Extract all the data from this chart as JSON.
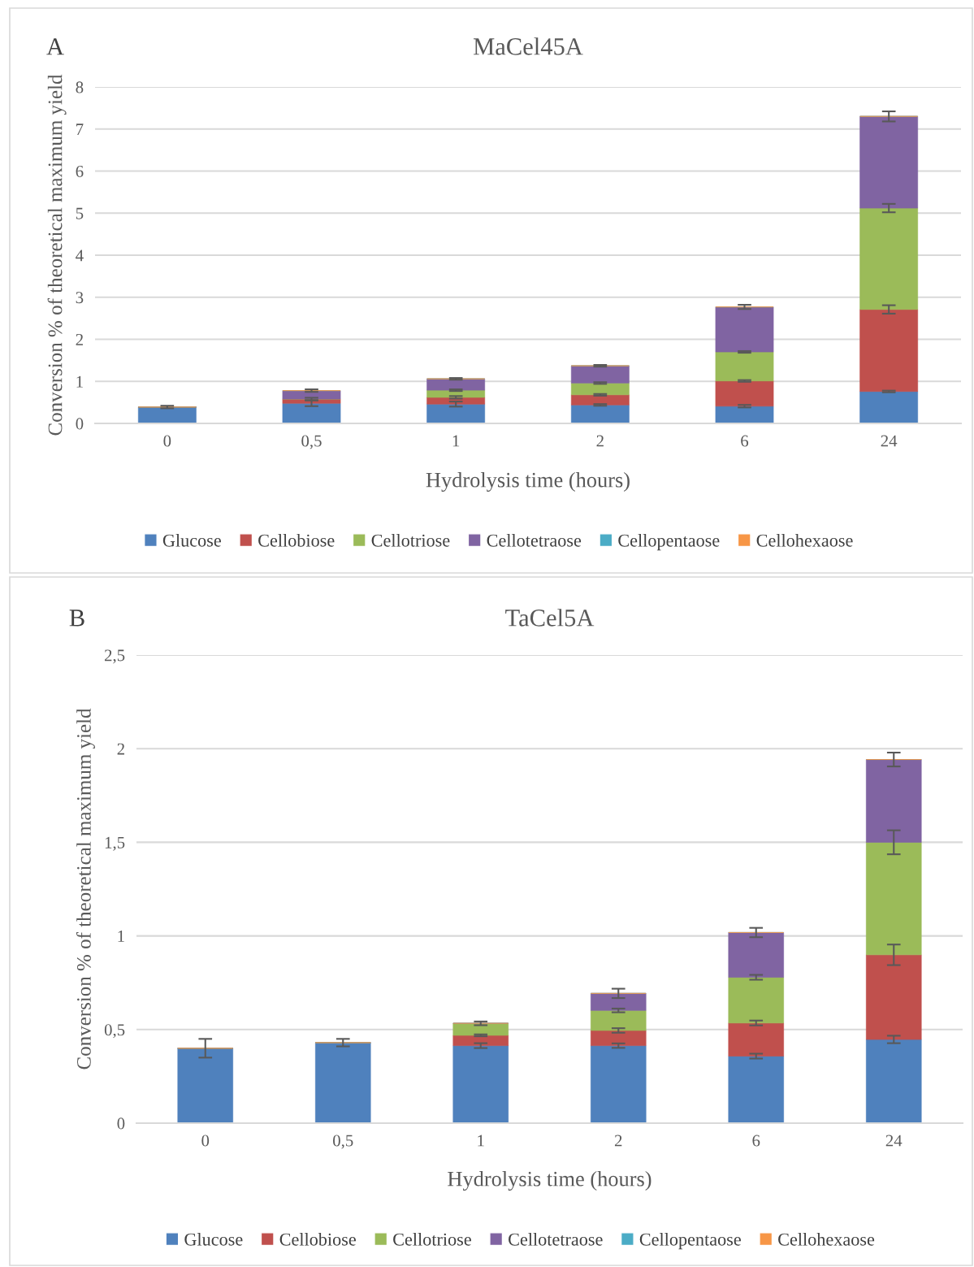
{
  "chart_data": [
    {
      "type": "bar",
      "title": "MaCel45A",
      "annotations": [
        "A"
      ],
      "xlabel": "Hydrolysis time (hours)",
      "ylabel": "Conversion % of theoretical maximum yield",
      "categories": [
        "0",
        "0,5",
        "1",
        "2",
        "6",
        "24"
      ],
      "stacked": true,
      "grid": "y",
      "legend": "bottom",
      "ylim": [
        0,
        8
      ],
      "yticks": [
        0,
        1,
        2,
        3,
        4,
        5,
        6,
        7,
        8
      ],
      "series": [
        {
          "name": "Glucose",
          "color": "#4f81bd",
          "values": [
            0.39,
            0.48,
            0.46,
            0.44,
            0.41,
            0.76
          ],
          "errors": [
            0.03,
            0.07,
            0.06,
            0.02,
            0.03,
            0.02
          ]
        },
        {
          "name": "Cellobiose",
          "color": "#c0504d",
          "values": [
            0,
            0.1,
            0.16,
            0.24,
            0.6,
            1.95
          ],
          "errors": [
            null,
            0.03,
            0.03,
            0.02,
            0.02,
            0.1
          ]
        },
        {
          "name": "Cellotriose",
          "color": "#9bbb59",
          "values": [
            0,
            0,
            0.17,
            0.28,
            0.69,
            2.41
          ],
          "errors": [
            null,
            null,
            0.02,
            0.02,
            0.02,
            0.1
          ]
        },
        {
          "name": "Cellotetraose",
          "color": "#8064a2",
          "values": [
            0,
            0.2,
            0.27,
            0.41,
            1.07,
            2.18
          ],
          "errors": [
            null,
            0.03,
            0.02,
            0.02,
            0.05,
            0.12
          ]
        },
        {
          "name": "Cellopentaose",
          "color": "#4bacc6",
          "values": [
            0,
            0,
            0,
            0,
            0,
            0
          ]
        },
        {
          "name": "Cellohexaose",
          "color": "#f79646",
          "values": [
            0,
            0,
            0,
            0,
            0,
            0
          ]
        }
      ]
    },
    {
      "type": "bar",
      "title": "TaCel5A",
      "annotations": [
        "B"
      ],
      "xlabel": "Hydrolysis time (hours)",
      "ylabel": "Conversion % of theoretical maximum yield",
      "categories": [
        "0",
        "0,5",
        "1",
        "2",
        "6",
        "24"
      ],
      "stacked": true,
      "grid": "y",
      "legend": "bottom",
      "ylim": [
        0,
        2.5
      ],
      "yticks": [
        0,
        {
          "value": 0.5,
          "label": "0,5"
        },
        1,
        {
          "value": 1.5,
          "label": "1,5"
        },
        2,
        {
          "value": 2.5,
          "label": "2,5"
        }
      ],
      "series": [
        {
          "name": "Glucose",
          "color": "#4f81bd",
          "values": [
            0.4,
            0.43,
            0.414,
            0.414,
            0.358,
            0.447
          ],
          "errors": [
            0.05,
            0.02,
            0.013,
            0.012,
            0.013,
            0.02
          ]
        },
        {
          "name": "Cellobiose",
          "color": "#c0504d",
          "values": [
            0,
            0,
            0.055,
            0.081,
            0.177,
            0.452
          ],
          "errors": [
            null,
            null,
            0.005,
            0.012,
            0.013,
            0.055
          ]
        },
        {
          "name": "Cellotriose",
          "color": "#9bbb59",
          "values": [
            0,
            0,
            0.064,
            0.107,
            0.244,
            0.601
          ],
          "errors": [
            null,
            null,
            0.01,
            0.01,
            0.013,
            0.064
          ]
        },
        {
          "name": "Cellotetraose",
          "color": "#8064a2",
          "values": [
            0,
            0,
            0,
            0.091,
            0.239,
            0.442
          ],
          "errors": [
            null,
            null,
            null,
            0.025,
            0.025,
            0.037
          ]
        },
        {
          "name": "Cellopentaose",
          "color": "#4bacc6",
          "values": [
            0,
            0,
            0,
            0,
            0,
            0
          ]
        },
        {
          "name": "Cellohexaose",
          "color": "#f79646",
          "values": [
            0,
            0,
            0,
            0,
            0,
            0
          ]
        }
      ]
    }
  ]
}
